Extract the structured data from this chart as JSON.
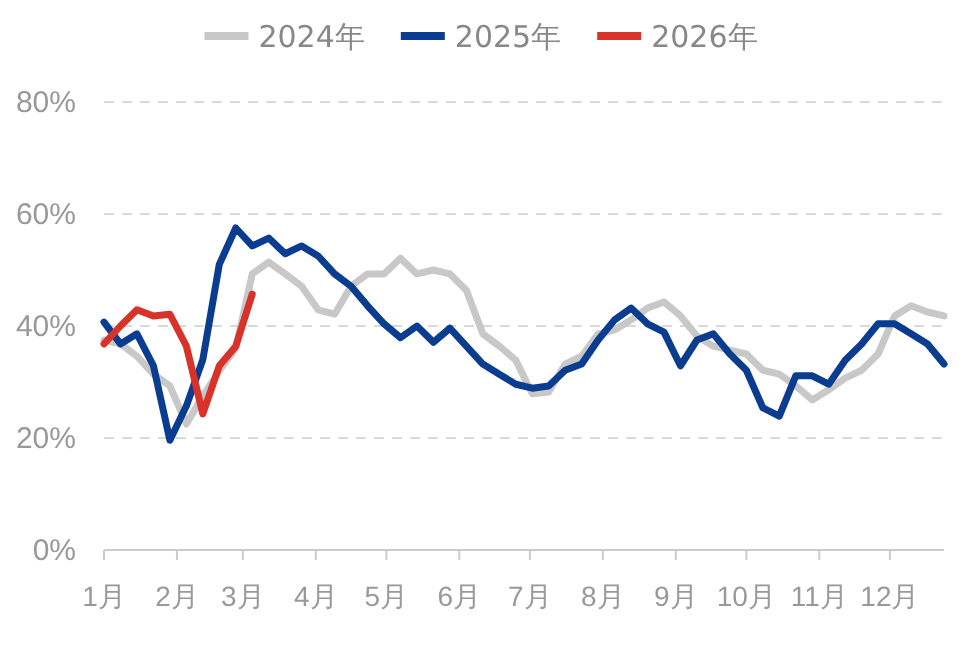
{
  "chart_data": {
    "type": "line",
    "x": [
      "--01-01",
      "--01-08",
      "--01-15",
      "--01-22",
      "--01-29",
      "--02-05",
      "--02-12",
      "--02-19",
      "--02-26",
      "--03-05",
      "--03-12",
      "--03-19",
      "--03-26",
      "--04-02",
      "--04-09",
      "--04-16",
      "--04-23",
      "--04-30",
      "--05-07",
      "--05-14",
      "--05-21",
      "--05-28",
      "--06-04",
      "--06-11",
      "--06-18",
      "--06-25",
      "--07-02",
      "--07-09",
      "--07-16",
      "--07-23",
      "--07-30",
      "--08-06",
      "--08-13",
      "--08-20",
      "--08-27",
      "--09-03",
      "--09-10",
      "--09-17",
      "--09-24",
      "--10-01",
      "--10-08",
      "--10-15",
      "--10-22",
      "--10-29",
      "--11-05",
      "--11-12",
      "--11-19",
      "--11-26",
      "--12-03",
      "--12-10",
      "--12-17",
      "--12-24"
    ],
    "xlim": [
      "--01-01",
      "--12-24"
    ],
    "xticks": [
      {
        "value": "--01-01",
        "label": "1月"
      },
      {
        "value": "--02-01",
        "label": "2月"
      },
      {
        "value": "--03-01",
        "label": "3月"
      },
      {
        "value": "--04-01",
        "label": "4月"
      },
      {
        "value": "--05-01",
        "label": "5月"
      },
      {
        "value": "--06-01",
        "label": "6月"
      },
      {
        "value": "--07-01",
        "label": "7月"
      },
      {
        "value": "--08-01",
        "label": "8月"
      },
      {
        "value": "--09-01",
        "label": "9月"
      },
      {
        "value": "--10-01",
        "label": "10月"
      },
      {
        "value": "--11-01",
        "label": "11月"
      },
      {
        "value": "--12-01",
        "label": "12月"
      }
    ],
    "ylim": [
      0,
      80
    ],
    "yticks": [
      {
        "value": 0,
        "label": "0%"
      },
      {
        "value": 20,
        "label": "20%"
      },
      {
        "value": 40,
        "label": "40%"
      },
      {
        "value": 60,
        "label": "60%"
      },
      {
        "value": 80,
        "label": "80%"
      }
    ],
    "grid": "y",
    "legend": "top",
    "marker": "none",
    "line_style": "solid",
    "series": [
      {
        "name": "2024年",
        "color": "#c8c8c8",
        "values": [
          37.5,
          36.8,
          34.6,
          31.4,
          29.3,
          22.5,
          27.5,
          32,
          36,
          49.3,
          51.4,
          49.3,
          47.1,
          42.9,
          42.1,
          47.1,
          49.3,
          49.3,
          52.1,
          49.3,
          50,
          49.3,
          46.4,
          38.6,
          36.4,
          33.9,
          27.9,
          28.2,
          33.2,
          34.6,
          38.6,
          39.3,
          41.1,
          43.2,
          44.3,
          41.8,
          38.2,
          36.4,
          35.7,
          35,
          32.1,
          31.4,
          29.3,
          26.8,
          28.6,
          30.7,
          32.1,
          35,
          41.8,
          43.6,
          42.5,
          41.8
        ]
      },
      {
        "name": "2025年",
        "color": "#0a3d8f",
        "values": [
          40.7,
          36.8,
          38.6,
          32.9,
          19.6,
          25.7,
          34,
          51,
          57.5,
          54.3,
          55.7,
          52.9,
          54.3,
          52.5,
          49.3,
          47.1,
          43.6,
          40.4,
          37.9,
          40,
          37.1,
          39.6,
          36.4,
          33.2,
          31.4,
          29.6,
          28.9,
          29.3,
          32.1,
          33.2,
          37.5,
          41.1,
          43.2,
          40.4,
          38.9,
          32.9,
          37.5,
          38.6,
          35,
          32.1,
          25.4,
          23.9,
          31.1,
          31.1,
          29.6,
          33.9,
          36.8,
          40.4,
          40.4,
          38.6,
          36.8,
          33.2
        ]
      },
      {
        "name": "2026年",
        "color": "#d9322b",
        "x": [
          "--01-01",
          "--01-08",
          "--01-15",
          "--01-22",
          "--01-29",
          "--02-05",
          "--02-12",
          "--02-19",
          "--02-26",
          "--03-05"
        ],
        "values": [
          36.8,
          40,
          42.9,
          41.8,
          42.1,
          36.4,
          24.3,
          32.9,
          36.4,
          45.7
        ]
      }
    ]
  }
}
